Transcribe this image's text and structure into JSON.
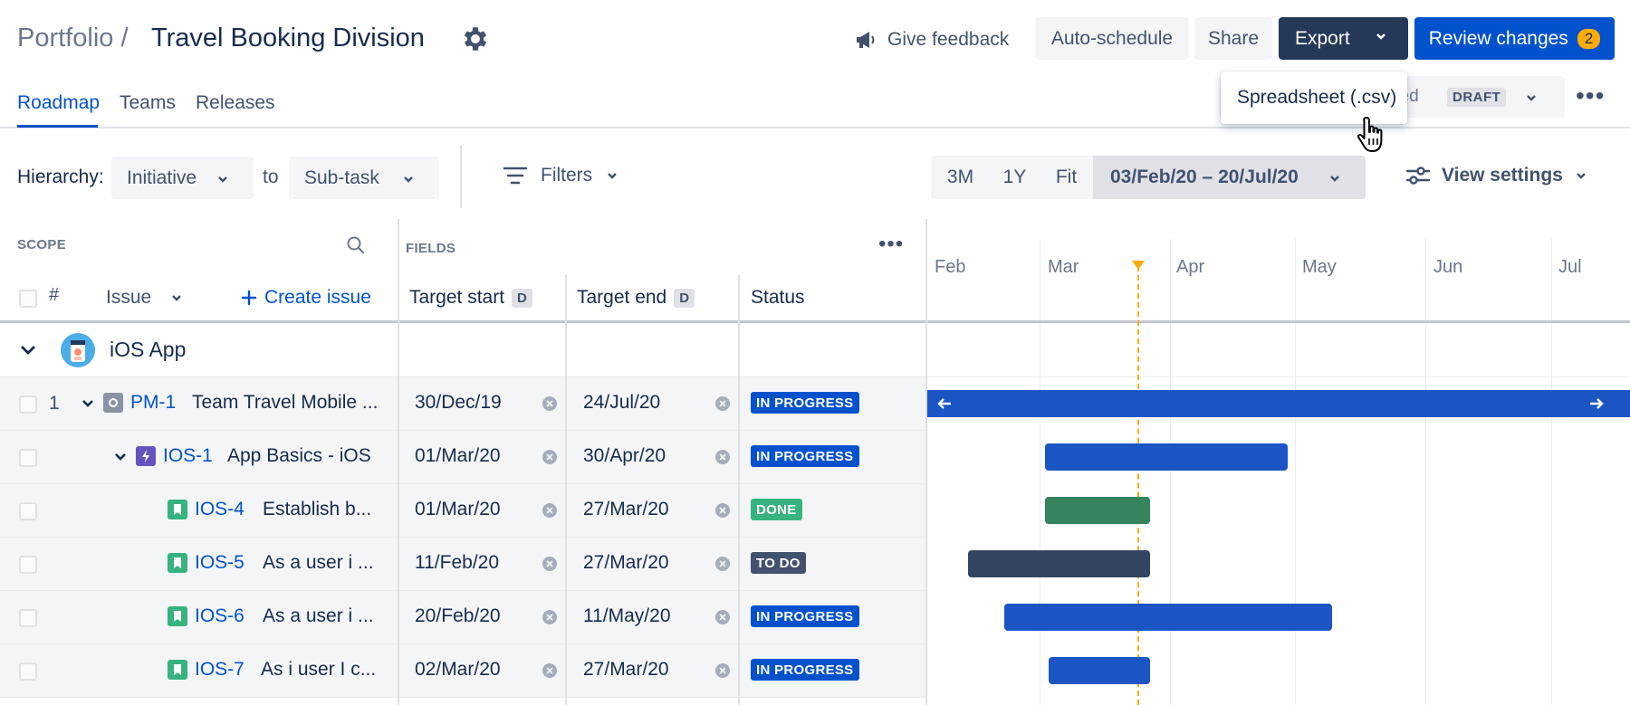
{
  "header": {
    "breadcrumb": "Portfolio /",
    "title": "Travel Booking Division",
    "feedback_label": "Give feedback",
    "auto_schedule_label": "Auto-schedule",
    "share_label": "Share",
    "export_label": "Export",
    "review_label": "Review changes",
    "review_count": "2"
  },
  "nav": {
    "tabs": [
      {
        "label": "Roadmap",
        "active": true
      },
      {
        "label": "Teams",
        "active": false
      },
      {
        "label": "Releases",
        "active": false
      }
    ],
    "scenario_name": "tled",
    "scenario_badge": "DRAFT"
  },
  "export_menu": {
    "items": [
      "Spreadsheet (.csv)"
    ]
  },
  "toolbar": {
    "hierarchy_label": "Hierarchy:",
    "hierarchy_from": "Initiative",
    "to_label": "to",
    "hierarchy_to": "Sub-task",
    "filters_label": "Filters",
    "range_buttons": [
      "3M",
      "1Y",
      "Fit"
    ],
    "date_range": "03/Feb/20 – 20/Jul/20",
    "view_settings_label": "View settings"
  },
  "table": {
    "scope_label": "SCOPE",
    "fields_label": "FIELDS",
    "hash_label": "#",
    "issue_label": "Issue",
    "create_issue_label": "Create issue",
    "target_start_label": "Target start",
    "target_end_label": "Target end",
    "date_badge": "D",
    "status_label": "Status"
  },
  "timeline": {
    "months": [
      "Feb",
      "Mar",
      "Apr",
      "May",
      "Jun",
      "Jul"
    ]
  },
  "group": {
    "name": "iOS App"
  },
  "colors": {
    "in_progress": "#0052cc",
    "done": "#36b37e",
    "todo": "#42526e",
    "bar_blue": "#1b55c4",
    "bar_green": "#36845d",
    "bar_dark": "#344563",
    "today": "#ffab00"
  },
  "rows": [
    {
      "num": "1",
      "key": "PM-1",
      "summary": "Team Travel Mobile ...",
      "start": "30/Dec/19",
      "end": "24/Jul/20",
      "status": "IN PROGRESS",
      "icon": "initiative-icon"
    },
    {
      "num": "",
      "key": "IOS-1",
      "summary": "App Basics - iOS",
      "start": "01/Mar/20",
      "end": "30/Apr/20",
      "status": "IN PROGRESS",
      "icon": "epic-icon"
    },
    {
      "num": "",
      "key": "IOS-4",
      "summary": "Establish b...",
      "start": "01/Mar/20",
      "end": "27/Mar/20",
      "status": "DONE",
      "icon": "story-icon"
    },
    {
      "num": "",
      "key": "IOS-5",
      "summary": "As a user i ...",
      "start": "11/Feb/20",
      "end": "27/Mar/20",
      "status": "TO DO",
      "icon": "story-icon"
    },
    {
      "num": "",
      "key": "IOS-6",
      "summary": "As a user i ...",
      "start": "20/Feb/20",
      "end": "11/May/20",
      "status": "IN PROGRESS",
      "icon": "story-icon"
    },
    {
      "num": "",
      "key": "IOS-7",
      "summary": "As i user I c...",
      "start": "02/Mar/20",
      "end": "27/Mar/20",
      "status": "IN PROGRESS",
      "icon": "story-icon"
    }
  ]
}
